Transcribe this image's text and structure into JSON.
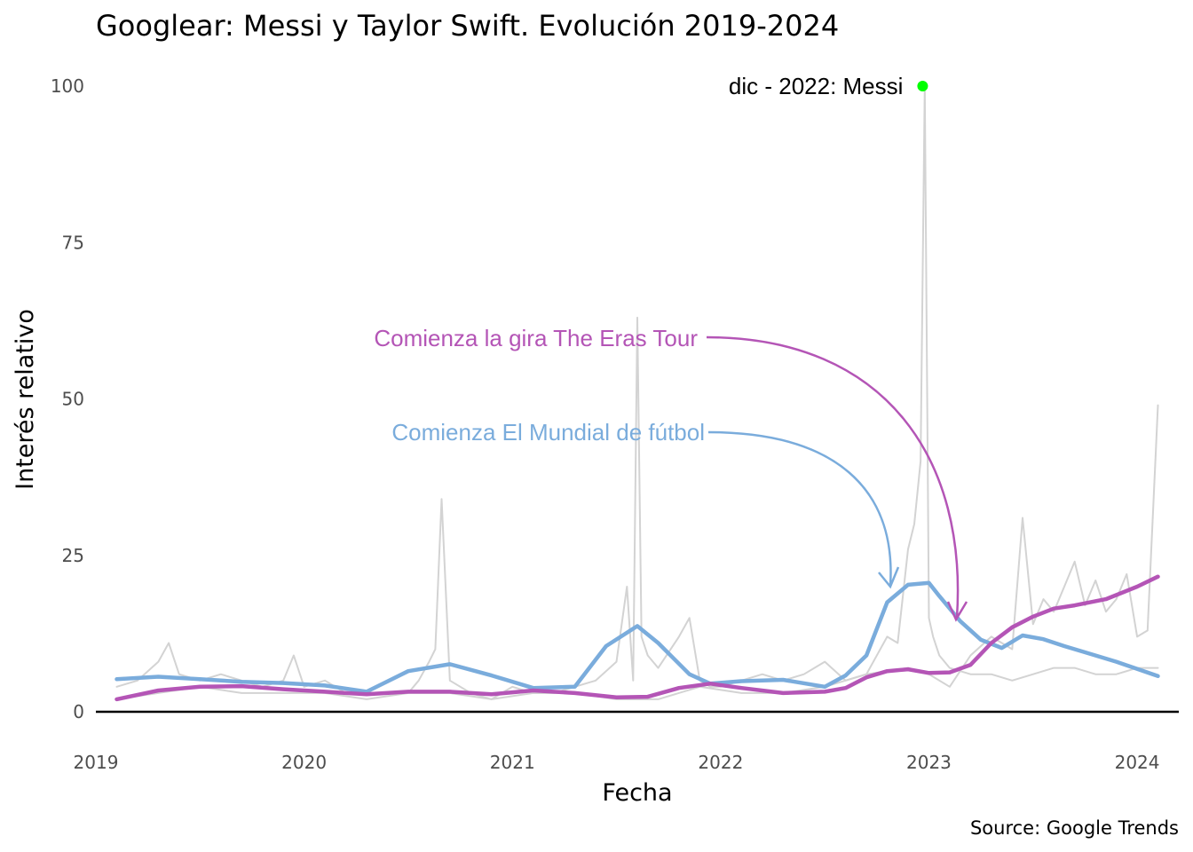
{
  "chart_data": {
    "type": "line",
    "title": "Googlear: Messi y Taylor Swift. Evolución 2019-2024",
    "xlabel": "Fecha",
    "ylabel": "Interés relativo",
    "caption": "Source: Google Trends",
    "xlim": [
      2019.0,
      2024.2
    ],
    "ylim": [
      0,
      100
    ],
    "x_ticks": [
      2019,
      2020,
      2021,
      2022,
      2023,
      2024
    ],
    "y_ticks": [
      0,
      25,
      50,
      75,
      100
    ],
    "grid": false,
    "colors": {
      "messi": "#7aacdc",
      "taylor": "#b455b6",
      "raw": "#d3d3d3",
      "peak": "#00ff00"
    },
    "series": [
      {
        "key": "messi-smooth",
        "x": [
          2019.1,
          2019.3,
          2019.5,
          2019.7,
          2019.9,
          2020.1,
          2020.3,
          2020.5,
          2020.7,
          2020.9,
          2021.1,
          2021.3,
          2021.45,
          2021.6,
          2021.7,
          2021.85,
          2021.95,
          2022.1,
          2022.3,
          2022.5,
          2022.6,
          2022.7,
          2022.8,
          2022.9,
          2023.0,
          2023.05,
          2023.15,
          2023.25,
          2023.35,
          2023.45,
          2023.55,
          2023.65,
          2023.75,
          2023.9,
          2024.1
        ],
        "values": [
          5.2,
          5.6,
          5.2,
          4.8,
          4.6,
          4.2,
          3.2,
          6.5,
          7.6,
          5.8,
          3.8,
          4.0,
          10.5,
          13.7,
          11.0,
          6.0,
          4.5,
          4.9,
          5.1,
          4.0,
          5.8,
          9.0,
          17.5,
          20.3,
          20.6,
          18.5,
          14.5,
          11.5,
          10.2,
          12.2,
          11.6,
          10.5,
          9.5,
          8.0,
          5.7
        ]
      },
      {
        "key": "taylor-smooth",
        "x": [
          2019.1,
          2019.3,
          2019.5,
          2019.7,
          2019.9,
          2020.1,
          2020.3,
          2020.5,
          2020.7,
          2020.9,
          2021.1,
          2021.3,
          2021.5,
          2021.65,
          2021.8,
          2021.95,
          2022.1,
          2022.3,
          2022.5,
          2022.6,
          2022.7,
          2022.8,
          2022.9,
          2023.0,
          2023.1,
          2023.2,
          2023.3,
          2023.4,
          2023.5,
          2023.6,
          2023.7,
          2023.85,
          2024.0,
          2024.1
        ],
        "values": [
          2.0,
          3.4,
          4.0,
          4.1,
          3.6,
          3.2,
          2.8,
          3.2,
          3.2,
          2.8,
          3.4,
          3.0,
          2.3,
          2.4,
          3.8,
          4.5,
          3.8,
          3.0,
          3.2,
          3.8,
          5.5,
          6.5,
          6.8,
          6.2,
          6.3,
          7.5,
          11.0,
          13.5,
          15.2,
          16.5,
          17.0,
          18.0,
          20.0,
          21.6
        ]
      },
      {
        "key": "messi-raw",
        "x": [
          2019.1,
          2019.2,
          2019.3,
          2019.35,
          2019.4,
          2019.5,
          2019.6,
          2019.7,
          2019.8,
          2019.9,
          2019.95,
          2020.0,
          2020.1,
          2020.2,
          2020.3,
          2020.4,
          2020.5,
          2020.55,
          2020.6,
          2020.63,
          2020.66,
          2020.7,
          2020.8,
          2020.9,
          2021.0,
          2021.1,
          2021.2,
          2021.3,
          2021.4,
          2021.5,
          2021.55,
          2021.58,
          2021.6,
          2021.62,
          2021.65,
          2021.7,
          2021.8,
          2021.85,
          2021.9,
          2021.95,
          2022.0,
          2022.1,
          2022.2,
          2022.3,
          2022.4,
          2022.5,
          2022.6,
          2022.7,
          2022.8,
          2022.85,
          2022.9,
          2022.93,
          2022.96,
          2022.98,
          2023.0,
          2023.02,
          2023.05,
          2023.1,
          2023.2,
          2023.3,
          2023.4,
          2023.5,
          2023.6,
          2023.7,
          2023.8,
          2023.9,
          2024.0,
          2024.1
        ],
        "values": [
          4,
          5,
          8,
          11,
          6,
          5,
          6,
          5,
          4,
          5,
          9,
          4,
          5,
          3,
          3,
          3,
          3,
          5,
          8,
          10,
          34,
          5,
          3,
          2,
          4,
          3,
          3,
          4,
          5,
          8,
          20,
          5,
          63,
          12,
          9,
          7,
          12,
          15,
          5,
          4,
          4,
          5,
          6,
          5,
          6,
          8,
          5,
          6,
          12,
          11,
          26,
          30,
          40,
          100,
          15,
          12,
          9,
          7,
          6,
          6,
          5,
          6,
          7,
          7,
          6,
          6,
          7,
          7
        ]
      },
      {
        "key": "taylor-raw",
        "x": [
          2019.1,
          2019.3,
          2019.5,
          2019.7,
          2019.9,
          2020.1,
          2020.3,
          2020.5,
          2020.7,
          2020.9,
          2021.1,
          2021.3,
          2021.5,
          2021.7,
          2021.9,
          2022.1,
          2022.3,
          2022.5,
          2022.7,
          2022.9,
          2023.0,
          2023.1,
          2023.2,
          2023.3,
          2023.4,
          2023.45,
          2023.5,
          2023.55,
          2023.6,
          2023.65,
          2023.7,
          2023.75,
          2023.8,
          2023.85,
          2023.9,
          2023.95,
          2024.0,
          2024.05,
          2024.1
        ],
        "values": [
          2,
          3,
          4,
          3,
          3,
          3,
          2,
          3,
          3,
          2,
          3,
          3,
          2,
          2,
          4,
          3,
          3,
          4,
          6,
          7,
          6,
          4,
          9,
          12,
          10,
          31,
          14,
          18,
          16,
          20,
          24,
          17,
          21,
          16,
          18,
          22,
          12,
          13,
          49
        ]
      },
      {
        "key": "messi-peak",
        "x": [
          2022.97
        ],
        "values": [
          100
        ]
      }
    ],
    "annotations": {
      "peak_label": "dic - 2022: Messi",
      "eras": "Comienza la gira The Eras Tour",
      "mundial": "Comienza El Mundial de fútbol"
    }
  }
}
